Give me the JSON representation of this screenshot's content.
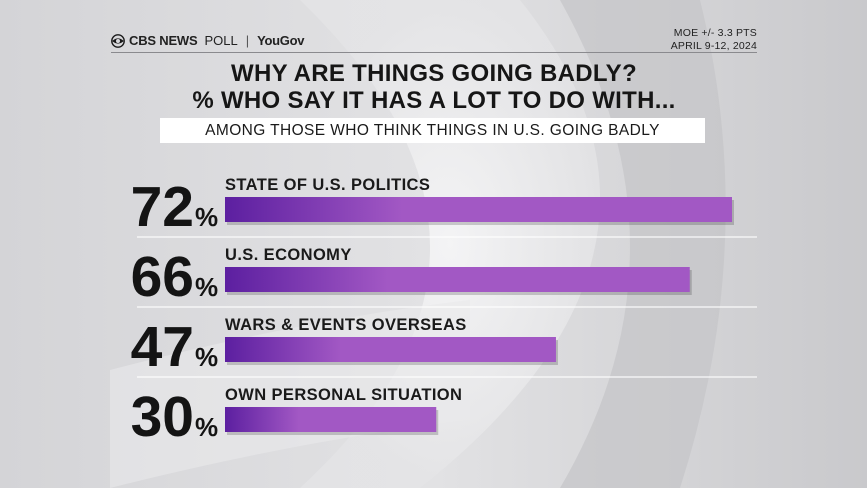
{
  "header": {
    "brand_cbs": "CBS NEWS",
    "brand_poll": "POLL",
    "brand_separator": "|",
    "brand_partner": "YouGov",
    "moe": "MOE +/- 3.3 PTS",
    "dates": "APRIL 9-12, 2024"
  },
  "title_line1": "WHY ARE THINGS GOING BADLY?",
  "title_line2": "% WHO SAY IT HAS A LOT TO DO WITH...",
  "subtitle": "AMONG THOSE WHO THINK THINGS IN U.S. GOING BADLY",
  "colors": {
    "bar_dark": "#5c1fa0",
    "bar_light": "#a258c4",
    "text": "#141414"
  },
  "chart_data": {
    "type": "bar",
    "orientation": "horizontal",
    "title": "WHY ARE THINGS GOING BADLY? % WHO SAY IT HAS A LOT TO DO WITH...",
    "subtitle": "AMONG THOSE WHO THINK THINGS IN U.S. GOING BADLY",
    "categories": [
      "STATE OF U.S. POLITICS",
      "U.S. ECONOMY",
      "WARS & EVENTS OVERSEAS",
      "OWN PERSONAL SITUATION"
    ],
    "values": [
      72,
      66,
      47,
      30
    ],
    "value_labels": [
      "72",
      "66",
      "47",
      "30"
    ],
    "unit": "%",
    "xlim": [
      0,
      72
    ],
    "grid": false,
    "legend": "none"
  }
}
